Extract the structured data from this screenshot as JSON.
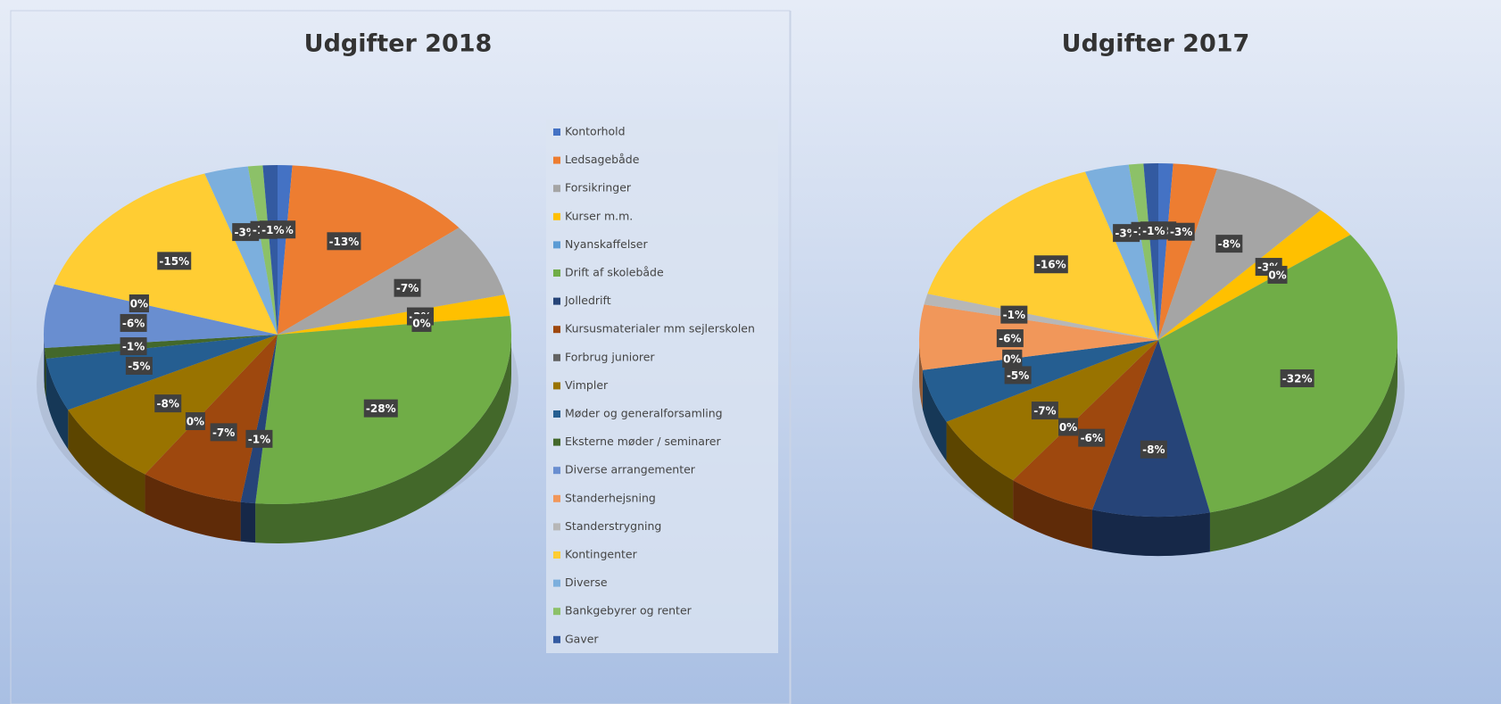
{
  "chart_data": [
    {
      "type": "pie3d",
      "title": "Udgifter 2018",
      "legend": "right",
      "categories": [
        "Kontorhold",
        "Ledsagebåde",
        "Forsikringer",
        "Kurser m.m.",
        "Nyanskaffelser",
        "Drift af skolebåde",
        "Jolledrift",
        "Kursusmaterialer mm sejlerskolen",
        "Forbrug juniorer",
        "Vimpler",
        "Møder og generalforsamling",
        "Eksterne møder / seminarer",
        "Diverse arrangementer",
        "Standerhejsning",
        "Standerstrygning",
        "Kontingenter",
        "Diverse",
        "Bankgebyrer og renter",
        "Gaver"
      ],
      "colors": [
        "#4472c4",
        "#ed7d31",
        "#a5a5a5",
        "#ffc000",
        "#5b9bd5",
        "#70ad47",
        "#264478",
        "#9e480e",
        "#636363",
        "#997300",
        "#255e91",
        "#43682b",
        "#698ed0",
        "#f1975a",
        "#b7b7b7",
        "#ffcd33",
        "#7cafdd",
        "#8cc168",
        "#335aa1"
      ],
      "values": [
        -1,
        -13,
        -7,
        -2,
        0,
        -28,
        -1,
        -7,
        0,
        -8,
        -5,
        -1,
        -6,
        0,
        0,
        -15,
        -3,
        -1,
        -1
      ],
      "value_labels": [
        "-1%",
        "-13%",
        "-7%",
        "-2%",
        "0%",
        "-28%",
        "-1%",
        "-7%",
        "0%",
        "-8%",
        "-5%",
        "-1%",
        "-6%",
        "0%",
        "0%",
        "-15%",
        "-3%",
        "-1%",
        "-1%"
      ]
    },
    {
      "type": "pie3d",
      "title": "Udgifter 2017",
      "categories": [
        "Kontorhold",
        "Ledsagebåde",
        "Forsikringer",
        "Kurser m.m.",
        "Nyanskaffelser",
        "Drift af skolebåde",
        "Jolledrift",
        "Kursusmaterialer mm sejlerskolen",
        "Forbrug juniorer",
        "Vimpler",
        "Møder og generalforsamling",
        "Eksterne møder / seminarer",
        "Diverse arrangementer",
        "Standerhejsning",
        "Standerstrygning",
        "Kontingenter",
        "Diverse",
        "Bankgebyrer og renter",
        "Gaver"
      ],
      "colors": [
        "#4472c4",
        "#ed7d31",
        "#a5a5a5",
        "#ffc000",
        "#5b9bd5",
        "#70ad47",
        "#264478",
        "#9e480e",
        "#636363",
        "#997300",
        "#255e91",
        "#43682b",
        "#698ed0",
        "#f1975a",
        "#b7b7b7",
        "#ffcd33",
        "#7cafdd",
        "#8cc168",
        "#335aa1"
      ],
      "values": [
        -1,
        -3,
        -8,
        -3,
        0,
        -32,
        -8,
        -6,
        0,
        -7,
        -5,
        0,
        0,
        -6,
        -1,
        -16,
        -3,
        -1,
        -1
      ],
      "value_labels": [
        "-1%",
        "-3%",
        "-8%",
        "-3%",
        "0%",
        "-32%",
        "-8%",
        "-6%",
        "0%",
        "-7%",
        "-5%",
        "0%",
        "0%",
        "-6%",
        "-1%",
        "-16%",
        "-3%",
        "-1%",
        "-1%"
      ]
    }
  ]
}
